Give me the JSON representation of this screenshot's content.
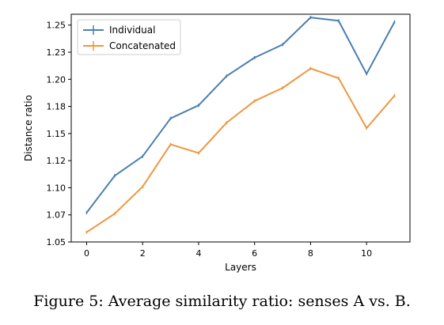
{
  "chart_data": {
    "type": "line",
    "title": "",
    "xlabel": "Layers",
    "ylabel": "Distance ratio",
    "xlim": [
      -0.55,
      11.55
    ],
    "ylim": [
      1.05,
      1.26
    ],
    "xticks": [
      0,
      2,
      4,
      6,
      8,
      10
    ],
    "xtick_labels": [
      "0",
      "2",
      "4",
      "6",
      "8",
      "10"
    ],
    "yticks": [
      1.05,
      1.075,
      1.1,
      1.125,
      1.15,
      1.175,
      1.2,
      1.225,
      1.25
    ],
    "ytick_labels": [
      "1.05",
      "1.07",
      "1.10",
      "1.12",
      "1.15",
      "1.18",
      "1.20",
      "1.23",
      "1.25"
    ],
    "legend_position": "top-left",
    "grid": false,
    "x": [
      0,
      1,
      2,
      3,
      4,
      5,
      6,
      7,
      8,
      9,
      10,
      11
    ],
    "series": [
      {
        "name": "Individual",
        "color": "#4a7fb0",
        "values": [
          1.077,
          1.111,
          1.129,
          1.164,
          1.176,
          1.203,
          1.22,
          1.232,
          1.257,
          1.254,
          1.205,
          1.253
        ]
      },
      {
        "name": "Concatenated",
        "color": "#f0963f",
        "values": [
          1.059,
          1.076,
          1.101,
          1.14,
          1.132,
          1.16,
          1.18,
          1.192,
          1.21,
          1.201,
          1.155,
          1.185
        ]
      }
    ]
  },
  "caption": "Figure 5: Average similarity ratio: senses A vs. B."
}
